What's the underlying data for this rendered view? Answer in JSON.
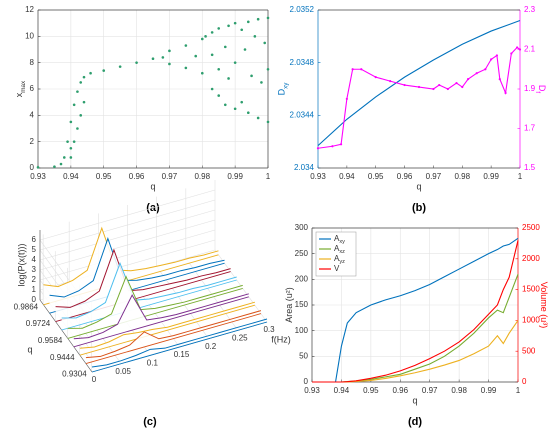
{
  "chart_data": [
    {
      "type": "scatter",
      "caption": "(a)",
      "x_label": "q",
      "y_label": {
        "text": "x",
        "sub": "max"
      },
      "xlim": [
        0.93,
        1
      ],
      "xticks": [
        0.93,
        0.94,
        0.95,
        0.96,
        0.97,
        0.98,
        0.99,
        1
      ],
      "ylim": [
        0,
        12
      ],
      "yticks": [
        0,
        2,
        4,
        6,
        8,
        10,
        12
      ],
      "grid": true,
      "series": [
        {
          "color": "#2e9e6e",
          "x": [
            0.93,
            0.935,
            0.937,
            0.938,
            0.939,
            0.94,
            0.94,
            0.94,
            0.941,
            0.941,
            0.942,
            0.942,
            0.943,
            0.943,
            0.944,
            0.944,
            0.946,
            0.95,
            0.955,
            0.96,
            0.965,
            0.968,
            0.97,
            0.975,
            0.978,
            0.98,
            0.981,
            0.97,
            0.975,
            0.98,
            0.983,
            0.983,
            0.983,
            0.985,
            0.985,
            0.985,
            0.987,
            0.987,
            0.988,
            0.988,
            0.99,
            0.99,
            0.99,
            0.992,
            0.992,
            0.993,
            0.994,
            0.994,
            0.995,
            0.996,
            0.997,
            0.997,
            0.998,
            0.999,
            1,
            1,
            1
          ],
          "values": [
            0.05,
            0.1,
            0.3,
            0.8,
            2,
            3.5,
            1.5,
            0.8,
            4.8,
            2,
            5.8,
            3,
            6.5,
            4,
            6.9,
            5,
            7.2,
            7.4,
            7.7,
            8.0,
            8.3,
            8.4,
            8.9,
            9.3,
            8.5,
            9.8,
            10.0,
            7.9,
            7.6,
            7.2,
            10.3,
            6,
            8.6,
            10.6,
            5.5,
            7.5,
            9.2,
            4.8,
            10.8,
            6.8,
            11,
            4.5,
            8,
            10.5,
            5,
            9,
            11.1,
            4.2,
            7,
            10,
            11.3,
            3.8,
            6.5,
            9.5,
            11.4,
            3.5,
            7.5
          ]
        }
      ]
    },
    {
      "type": "line",
      "caption": "(b)",
      "x_label": "q",
      "y_label": {
        "text": "D",
        "sub": "xy"
      },
      "y2_label": {
        "text": "D",
        "sub": "f"
      },
      "xlim": [
        0.93,
        1
      ],
      "xticks": [
        0.93,
        0.94,
        0.95,
        0.96,
        0.97,
        0.98,
        0.99,
        1
      ],
      "ylim": [
        2.034,
        2.0352
      ],
      "yticks": [
        2.034,
        2.0344,
        2.0348,
        2.0352
      ],
      "ycolor": "#0072bd",
      "y2lim": [
        1.5,
        2.3
      ],
      "y2ticks": [
        1.5,
        1.7,
        1.9,
        2.1,
        2.3
      ],
      "y2color": "#ff00ff",
      "grid": false,
      "series": [
        {
          "color": "#0072bd",
          "x": [
            0.93,
            0.94,
            0.95,
            0.96,
            0.97,
            0.98,
            0.99,
            1
          ],
          "values": [
            2.03417,
            2.03437,
            2.03454,
            2.03469,
            2.03482,
            2.03494,
            2.03504,
            2.03512
          ]
        },
        {
          "color": "#ff00ff",
          "axis": "y2",
          "marker": true,
          "x": [
            0.93,
            0.935,
            0.938,
            0.94,
            0.942,
            0.945,
            0.95,
            0.955,
            0.96,
            0.965,
            0.97,
            0.972,
            0.975,
            0.978,
            0.98,
            0.982,
            0.985,
            0.988,
            0.99,
            0.992,
            0.993,
            0.995,
            0.997,
            0.999,
            1
          ],
          "values": [
            1.6,
            1.61,
            1.62,
            1.85,
            2.0,
            2.0,
            1.96,
            1.94,
            1.92,
            1.91,
            1.9,
            1.92,
            1.9,
            1.93,
            1.91,
            1.95,
            1.98,
            2.0,
            2.05,
            2.07,
            1.95,
            1.88,
            2.08,
            2.11,
            2.1
          ]
        }
      ]
    },
    {
      "type": "waterfall",
      "caption": "(c)",
      "x_label": "f(Hz)",
      "y_label": "q",
      "z_label": "log(P(x(t)))",
      "x": [
        0,
        0.025,
        0.05,
        0.075,
        0.1,
        0.125,
        0.15,
        0.175,
        0.2,
        0.225,
        0.25,
        0.275,
        0.3
      ],
      "xlim": [
        0,
        0.3
      ],
      "xticks": [
        0,
        0.05,
        0.1,
        0.15,
        0.2,
        0.25,
        0.3
      ],
      "ylim": [
        0.93,
        0.99
      ],
      "yticks": [
        0.9304,
        0.9444,
        0.9584,
        0.9724,
        0.9864
      ],
      "zlim": [
        0,
        7
      ],
      "zticks": [
        0,
        1,
        2,
        3,
        4,
        5,
        6
      ],
      "series": [
        {
          "q": 0.93,
          "color": "#0072bd",
          "values": [
            0.5,
            0.3,
            0.3,
            0.4,
            0.6,
            0.3,
            0.3,
            0.3,
            0.3,
            0.3,
            0.3,
            0.3,
            0.3
          ]
        },
        {
          "q": 0.937,
          "color": "#d95319",
          "values": [
            0.6,
            0.3,
            0.4,
            0.6,
            1.5,
            0.4,
            0.3,
            0.3,
            0.3,
            0.3,
            0.3,
            0.3,
            0.3
          ]
        },
        {
          "q": 0.944,
          "color": "#edb120",
          "values": [
            0.7,
            0.4,
            0.5,
            0.8,
            0.6,
            0.5,
            0.3,
            0.3,
            0.3,
            0.3,
            0.3,
            0.3,
            0.3
          ]
        },
        {
          "q": 0.951,
          "color": "#7e2f8e",
          "values": [
            0.8,
            0.5,
            0.6,
            1.0,
            3.5,
            0.6,
            0.4,
            0.3,
            0.3,
            0.3,
            0.3,
            0.3,
            0.3
          ]
        },
        {
          "q": 0.958,
          "color": "#77ac30",
          "values": [
            1.0,
            0.6,
            0.8,
            1.2,
            4.5,
            0.8,
            0.5,
            0.4,
            0.3,
            0.3,
            0.3,
            0.3,
            0.3
          ]
        },
        {
          "q": 0.965,
          "color": "#4dbeee",
          "values": [
            1.2,
            0.8,
            1.0,
            1.5,
            5.0,
            0.9,
            0.6,
            0.5,
            0.4,
            0.4,
            0.3,
            0.3,
            0.3
          ]
        },
        {
          "q": 0.972,
          "color": "#a2142f",
          "values": [
            1.5,
            1.0,
            1.2,
            1.8,
            5.5,
            1.0,
            0.7,
            0.6,
            0.5,
            0.4,
            0.4,
            0.3,
            0.3
          ]
        },
        {
          "q": 0.979,
          "color": "#0072bd",
          "values": [
            1.8,
            1.2,
            1.4,
            2.0,
            5.8,
            1.2,
            0.8,
            0.6,
            0.5,
            0.5,
            0.4,
            0.4,
            0.3
          ]
        },
        {
          "q": 0.986,
          "color": "#edb120",
          "values": [
            2.0,
            1.4,
            1.6,
            2.2,
            6.0,
            1.4,
            0.9,
            0.7,
            0.6,
            0.5,
            0.5,
            0.4,
            0.4
          ]
        }
      ]
    },
    {
      "type": "line",
      "caption": "(d)",
      "x_label": "q",
      "y_label": "Area (u²)",
      "y2_label": "Volume (u³)",
      "x": [
        0.93,
        0.938,
        0.94,
        0.942,
        0.945,
        0.95,
        0.955,
        0.96,
        0.965,
        0.97,
        0.975,
        0.98,
        0.985,
        0.99,
        0.993,
        0.995,
        0.997,
        1
      ],
      "xlim": [
        0.93,
        1
      ],
      "xticks": [
        0.93,
        0.94,
        0.95,
        0.96,
        0.97,
        0.98,
        0.99,
        1
      ],
      "ylim": [
        0,
        300
      ],
      "yticks": [
        0,
        50,
        100,
        150,
        200,
        250,
        300
      ],
      "y2lim": [
        0,
        2500
      ],
      "y2ticks": [
        0,
        500,
        1000,
        1500,
        2000,
        2500
      ],
      "y2color": "#ff0000",
      "grid": true,
      "legend": "northwest",
      "series": [
        {
          "name": {
            "text": "A",
            "sub": "xy"
          },
          "color": "#0072bd",
          "values": [
            0,
            0,
            70,
            115,
            135,
            150,
            160,
            168,
            178,
            190,
            205,
            220,
            235,
            250,
            258,
            265,
            268,
            280
          ]
        },
        {
          "name": {
            "text": "A",
            "sub": "xz"
          },
          "color": "#77ac30",
          "values": [
            0,
            0,
            0,
            1,
            2,
            5,
            10,
            15,
            25,
            35,
            50,
            70,
            95,
            125,
            140,
            135,
            165,
            210
          ]
        },
        {
          "name": {
            "text": "A",
            "sub": "yz"
          },
          "color": "#edb120",
          "values": [
            0,
            0,
            0,
            0,
            1,
            3,
            7,
            12,
            18,
            25,
            33,
            42,
            55,
            70,
            90,
            75,
            95,
            120
          ]
        },
        {
          "name": "V",
          "color": "#ff0000",
          "axis": "y2",
          "values": [
            0,
            0,
            0,
            5,
            20,
            60,
            110,
            180,
            270,
            380,
            500,
            650,
            850,
            1100,
            1250,
            1500,
            1700,
            2300
          ]
        }
      ]
    }
  ]
}
